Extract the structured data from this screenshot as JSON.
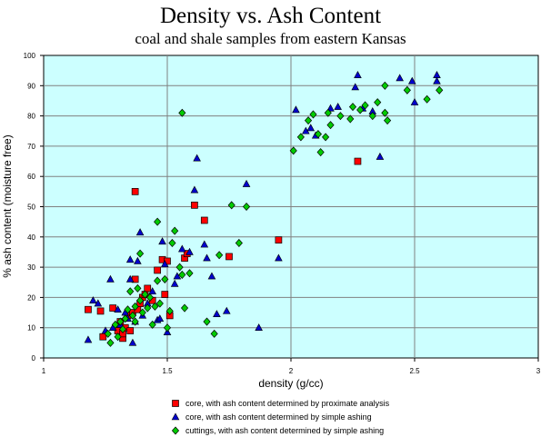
{
  "chart_data": {
    "type": "scatter",
    "title": "Density vs. Ash Content",
    "subtitle": "coal and shale samples from eastern Kansas",
    "xlabel": "density (g/cc)",
    "ylabel": "% ash content (moisture free)",
    "xlim": [
      1,
      3
    ],
    "ylim": [
      0,
      100
    ],
    "x_ticks": [
      "1",
      "1.5",
      "2",
      "2.5",
      "3"
    ],
    "y_ticks": [
      "0",
      "10",
      "20",
      "30",
      "40",
      "50",
      "60",
      "70",
      "80",
      "90",
      "100"
    ],
    "grid": true,
    "plot_background": "#ccffff",
    "gridline_color": "#808080",
    "legend_position": "bottom",
    "series": [
      {
        "name": "core, with ash content determined by proximate analysis",
        "marker": "square",
        "color": "#ff0000",
        "points": [
          [
            1.18,
            16
          ],
          [
            1.23,
            15.5
          ],
          [
            1.24,
            7
          ],
          [
            1.28,
            16.5
          ],
          [
            1.3,
            9
          ],
          [
            1.31,
            12
          ],
          [
            1.32,
            6.5
          ],
          [
            1.32,
            8
          ],
          [
            1.33,
            10
          ],
          [
            1.34,
            14
          ],
          [
            1.35,
            9
          ],
          [
            1.36,
            15
          ],
          [
            1.37,
            55
          ],
          [
            1.37,
            26
          ],
          [
            1.38,
            16
          ],
          [
            1.39,
            18
          ],
          [
            1.4,
            20
          ],
          [
            1.41,
            21
          ],
          [
            1.42,
            23
          ],
          [
            1.44,
            19
          ],
          [
            1.46,
            29
          ],
          [
            1.48,
            32.5
          ],
          [
            1.49,
            21
          ],
          [
            1.5,
            32
          ],
          [
            1.51,
            14
          ],
          [
            1.57,
            33
          ],
          [
            1.58,
            34.5
          ],
          [
            1.61,
            50.5
          ],
          [
            1.65,
            45.5
          ],
          [
            1.75,
            33.5
          ],
          [
            1.95,
            39
          ],
          [
            2.27,
            65
          ]
        ]
      },
      {
        "name": "core, with ash content determined by simple ashing",
        "marker": "triangle",
        "color": "#0000cc",
        "points": [
          [
            1.18,
            6
          ],
          [
            1.2,
            19
          ],
          [
            1.22,
            18
          ],
          [
            1.25,
            9
          ],
          [
            1.27,
            26
          ],
          [
            1.28,
            10
          ],
          [
            1.3,
            16
          ],
          [
            1.31,
            11
          ],
          [
            1.33,
            15
          ],
          [
            1.34,
            13
          ],
          [
            1.35,
            32.5
          ],
          [
            1.35,
            26
          ],
          [
            1.36,
            5
          ],
          [
            1.37,
            12
          ],
          [
            1.38,
            32
          ],
          [
            1.39,
            41.5
          ],
          [
            1.4,
            14
          ],
          [
            1.42,
            18
          ],
          [
            1.44,
            22
          ],
          [
            1.46,
            12.5
          ],
          [
            1.47,
            13
          ],
          [
            1.48,
            38.5
          ],
          [
            1.49,
            31
          ],
          [
            1.5,
            8.5
          ],
          [
            1.53,
            24.5
          ],
          [
            1.54,
            27
          ],
          [
            1.56,
            36
          ],
          [
            1.59,
            35
          ],
          [
            1.61,
            55.5
          ],
          [
            1.62,
            66
          ],
          [
            1.65,
            37.5
          ],
          [
            1.66,
            33
          ],
          [
            1.68,
            27
          ],
          [
            1.7,
            14.5
          ],
          [
            1.74,
            15.5
          ],
          [
            1.82,
            57.5
          ],
          [
            1.87,
            10
          ],
          [
            1.95,
            33
          ],
          [
            2.02,
            82
          ],
          [
            2.06,
            75
          ],
          [
            2.08,
            76
          ],
          [
            2.1,
            73.5
          ],
          [
            2.16,
            82.5
          ],
          [
            2.19,
            83
          ],
          [
            2.26,
            89.5
          ],
          [
            2.27,
            93.5
          ],
          [
            2.29,
            82.5
          ],
          [
            2.33,
            81.5
          ],
          [
            2.36,
            66.5
          ],
          [
            2.44,
            92.5
          ],
          [
            2.49,
            91.5
          ],
          [
            2.5,
            84.5
          ],
          [
            2.59,
            93.5
          ],
          [
            2.59,
            91.5
          ]
        ]
      },
      {
        "name": "cuttings, with ash content determined by simple ashing",
        "marker": "diamond",
        "color": "#00cc00",
        "points": [
          [
            1.26,
            8
          ],
          [
            1.27,
            5
          ],
          [
            1.29,
            11
          ],
          [
            1.3,
            7
          ],
          [
            1.31,
            12
          ],
          [
            1.32,
            9.5
          ],
          [
            1.33,
            13
          ],
          [
            1.34,
            16
          ],
          [
            1.35,
            22
          ],
          [
            1.36,
            14
          ],
          [
            1.37,
            12
          ],
          [
            1.37,
            17
          ],
          [
            1.38,
            23
          ],
          [
            1.39,
            34.5
          ],
          [
            1.39,
            19
          ],
          [
            1.4,
            15
          ],
          [
            1.41,
            21
          ],
          [
            1.42,
            16.5
          ],
          [
            1.43,
            20
          ],
          [
            1.44,
            11
          ],
          [
            1.45,
            17
          ],
          [
            1.46,
            45
          ],
          [
            1.46,
            25.5
          ],
          [
            1.47,
            18
          ],
          [
            1.49,
            26
          ],
          [
            1.5,
            10
          ],
          [
            1.51,
            15.5
          ],
          [
            1.52,
            38
          ],
          [
            1.53,
            42
          ],
          [
            1.55,
            30
          ],
          [
            1.56,
            81
          ],
          [
            1.56,
            27.5
          ],
          [
            1.57,
            16.5
          ],
          [
            1.59,
            28
          ],
          [
            1.66,
            12
          ],
          [
            1.69,
            8
          ],
          [
            1.71,
            34
          ],
          [
            1.76,
            50.5
          ],
          [
            1.79,
            38
          ],
          [
            1.82,
            50
          ],
          [
            2.01,
            68.5
          ],
          [
            2.04,
            73
          ],
          [
            2.07,
            78.5
          ],
          [
            2.09,
            80.5
          ],
          [
            2.11,
            74
          ],
          [
            2.12,
            68
          ],
          [
            2.14,
            73
          ],
          [
            2.15,
            81
          ],
          [
            2.16,
            77
          ],
          [
            2.2,
            80
          ],
          [
            2.24,
            79
          ],
          [
            2.25,
            83
          ],
          [
            2.28,
            82
          ],
          [
            2.3,
            83.5
          ],
          [
            2.33,
            80
          ],
          [
            2.35,
            84.5
          ],
          [
            2.38,
            81
          ],
          [
            2.38,
            90
          ],
          [
            2.39,
            78.5
          ],
          [
            2.47,
            88.5
          ],
          [
            2.55,
            85.5
          ],
          [
            2.6,
            88.5
          ]
        ]
      }
    ]
  }
}
